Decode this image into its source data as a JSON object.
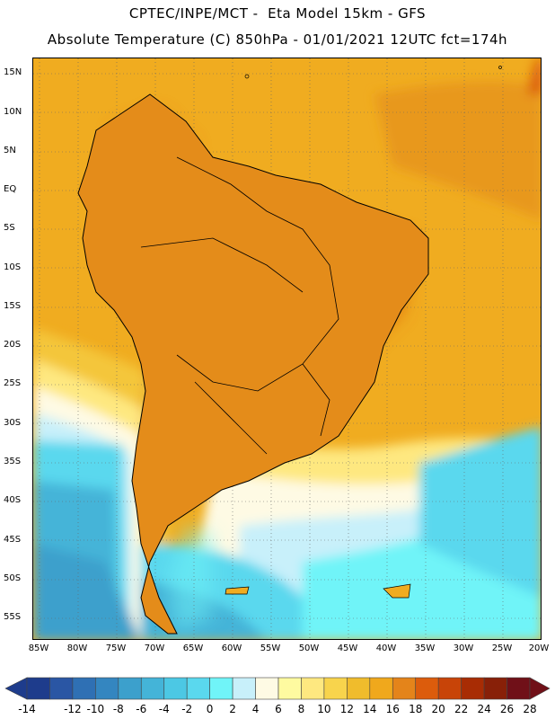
{
  "header": {
    "line1": "CPTEC/INPE/MCT -  Eta Model 15km - GFS",
    "line2": "Absolute Temperature (C) 850hPa - 01/01/2021 12UTC fct=174h"
  },
  "map": {
    "lat_labels": [
      "15N",
      "10N",
      "5N",
      "EQ",
      "5S",
      "10S",
      "15S",
      "20S",
      "25S",
      "30S",
      "35S",
      "40S",
      "45S",
      "50S",
      "55S"
    ],
    "lon_labels": [
      "85W",
      "80W",
      "75W",
      "70W",
      "65W",
      "60W",
      "55W",
      "50W",
      "45W",
      "40W",
      "35W",
      "30W",
      "25W",
      "20W"
    ],
    "ocean_color": "#f0b020",
    "land_color": "#e48c1a",
    "grid": "dotted"
  },
  "colorbar": {
    "labels": [
      "-14",
      "-12",
      "-10",
      "-8",
      "-6",
      "-4",
      "-2",
      "0",
      "2",
      "4",
      "6",
      "8",
      "10",
      "12",
      "14",
      "16",
      "18",
      "20",
      "22",
      "24",
      "26",
      "28"
    ],
    "colors": [
      "#1e3c8c",
      "#2a56a4",
      "#2f70b4",
      "#3486c0",
      "#3ca0cc",
      "#44b4d8",
      "#4cc8e4",
      "#5ad8ee",
      "#70f4f8",
      "#c8f0fa",
      "#fefae4",
      "#fefaa0",
      "#fee880",
      "#f8d44c",
      "#f0bc2c",
      "#f0a81c",
      "#e4841a",
      "#dc5c0c",
      "#c84408",
      "#a82c04",
      "#882008",
      "#701018"
    ]
  }
}
